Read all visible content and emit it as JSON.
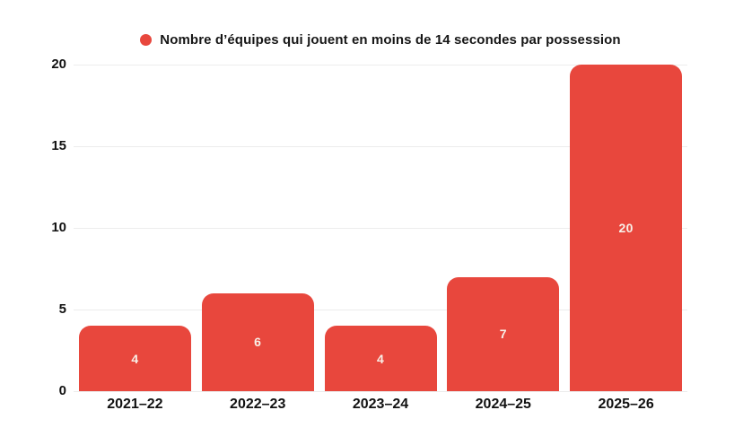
{
  "chart_data": {
    "type": "bar",
    "title": "",
    "legend": {
      "label": "Nombre d’équipes qui jouent en moins de 14 secondes par possession",
      "marker_color": "#e8473d",
      "position": "top-center"
    },
    "categories": [
      "2021–22",
      "2022–23",
      "2023–24",
      "2024–25",
      "2025–26"
    ],
    "values": [
      4,
      6,
      4,
      7,
      20
    ],
    "value_labels": [
      "4",
      "6",
      "4",
      "7",
      "20"
    ],
    "bar_color": "#e8473d",
    "value_label_color": "#f8f0e8",
    "xlabel": "",
    "ylabel": "",
    "ylim": [
      0,
      20
    ],
    "yticks": [
      0,
      5,
      10,
      15,
      20
    ],
    "grid": true,
    "gridline_color": "#ececec",
    "axis_text_color": "#111111",
    "background_color": "#ffffff"
  }
}
